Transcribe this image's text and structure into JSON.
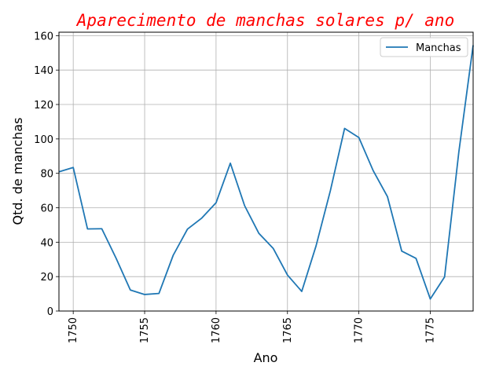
{
  "chart_data": {
    "type": "line",
    "title": "Aparecimento de manchas solares p/ ano",
    "xlabel": "Ano",
    "ylabel": "Qtd. de manchas",
    "xlim": [
      1749,
      1778
    ],
    "ylim": [
      0,
      162
    ],
    "x_ticks": [
      1750,
      1755,
      1760,
      1765,
      1770,
      1775
    ],
    "y_ticks": [
      0,
      20,
      40,
      60,
      80,
      100,
      120,
      140,
      160
    ],
    "grid": true,
    "legend_position": "top-right",
    "series": [
      {
        "name": "Manchas",
        "color": "#1f77b4",
        "x": [
          1749,
          1750,
          1751,
          1752,
          1753,
          1754,
          1755,
          1756,
          1757,
          1758,
          1759,
          1760,
          1761,
          1762,
          1763,
          1764,
          1765,
          1766,
          1767,
          1768,
          1769,
          1770,
          1771,
          1772,
          1773,
          1774,
          1775,
          1776,
          1777,
          1778
        ],
        "values": [
          80.9,
          83.4,
          47.7,
          47.8,
          30.7,
          12.2,
          9.6,
          10.2,
          32.4,
          47.6,
          54.0,
          62.9,
          85.9,
          61.2,
          45.1,
          36.4,
          20.9,
          11.4,
          37.8,
          69.8,
          106.1,
          100.8,
          81.6,
          66.5,
          34.8,
          30.6,
          7.0,
          19.8,
          92.5,
          154.4
        ]
      }
    ]
  }
}
